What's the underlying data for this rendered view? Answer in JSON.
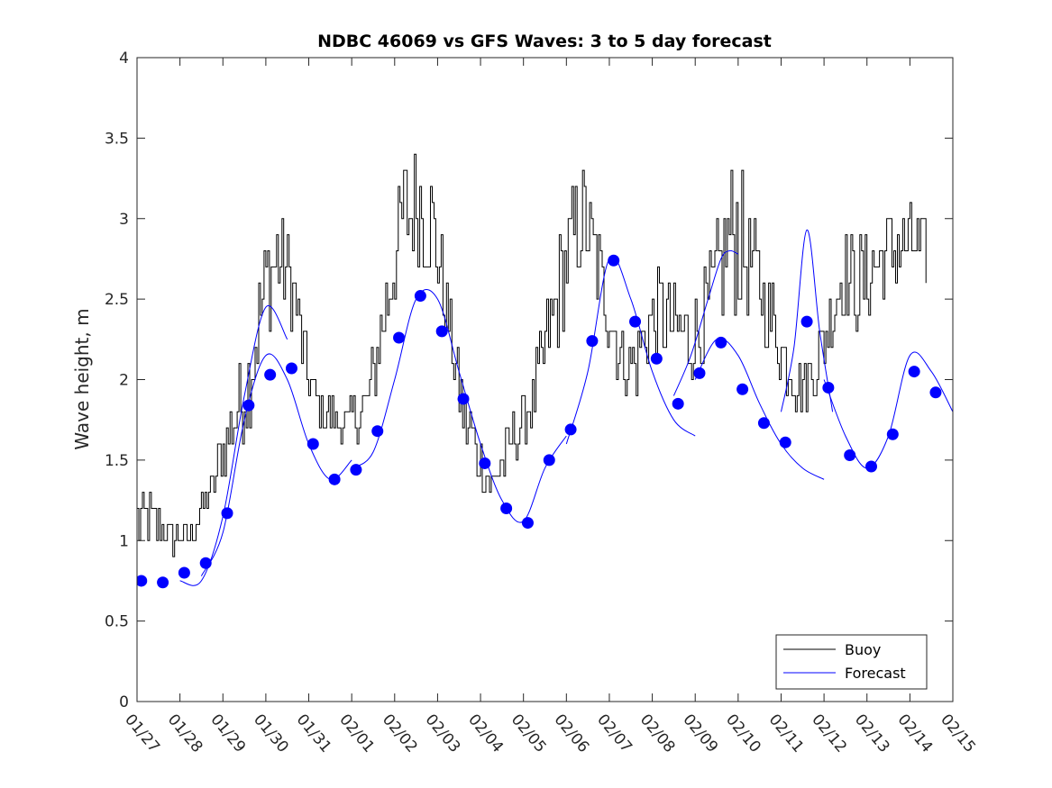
{
  "chart_data": {
    "type": "line",
    "title": "NDBC 46069 vs GFS Waves: 3 to 5 day forecast",
    "xlabel": "",
    "ylabel": "Wave height, m",
    "xlim": [
      0,
      19
    ],
    "ylim": [
      0,
      4
    ],
    "yticks": [
      0,
      0.5,
      1,
      1.5,
      2,
      2.5,
      3,
      3.5,
      4
    ],
    "ytick_labels": [
      "0",
      "0.5",
      "1",
      "1.5",
      "2",
      "2.5",
      "3",
      "3.5",
      "4"
    ],
    "xtick_labels": [
      "01/27",
      "01/28",
      "01/29",
      "01/30",
      "01/31",
      "02/01",
      "02/02",
      "02/03",
      "02/04",
      "02/05",
      "02/06",
      "02/07",
      "02/08",
      "02/09",
      "02/10",
      "02/11",
      "02/12",
      "02/13",
      "02/14",
      "02/15"
    ],
    "legend": {
      "position": "bottom-right",
      "entries": [
        "Buoy",
        "Forecast"
      ]
    },
    "colors": {
      "buoy": "#000000",
      "forecast": "#0000ff"
    },
    "buoy_envelope": {
      "x": [
        0,
        0.3,
        0.7,
        1.2,
        1.7,
        2.1,
        2.6,
        2.9,
        3.1,
        3.3,
        3.6,
        3.9,
        4.2,
        4.6,
        5.0,
        5.4,
        5.8,
        6.2,
        6.6,
        6.9,
        7.1,
        7.3,
        7.6,
        7.9,
        8.2,
        8.6,
        8.9,
        9.2,
        9.6,
        10.0,
        10.4,
        10.8,
        11.2,
        11.4,
        11.6,
        11.9,
        12.2,
        12.6,
        12.9,
        13.2,
        13.6,
        13.9,
        14.2,
        14.6,
        15.0,
        15.3,
        15.6,
        15.8,
        15.9,
        16.1,
        16.4,
        16.8,
        17.2,
        17.5,
        17.9,
        18.2,
        18.4
      ],
      "base": [
        1.1,
        1.1,
        1.05,
        1.0,
        1.3,
        1.65,
        2.0,
        2.45,
        2.7,
        2.75,
        2.6,
        2.1,
        1.8,
        1.75,
        1.75,
        1.9,
        2.5,
        3.0,
        3.1,
        2.9,
        2.6,
        2.25,
        1.8,
        1.55,
        1.35,
        1.55,
        1.7,
        1.85,
        2.3,
        2.75,
        3.0,
        2.6,
        2.2,
        2.1,
        2.1,
        2.35,
        2.4,
        2.3,
        2.2,
        2.4,
        2.7,
        2.95,
        2.75,
        2.5,
        2.2,
        2.0,
        1.95,
        2.1,
        2.2,
        2.35,
        2.65,
        2.6,
        2.7,
        2.8,
        2.85,
        2.8,
        2.8
      ],
      "amp": [
        0.25,
        0.2,
        0.12,
        0.12,
        0.15,
        0.2,
        0.3,
        0.4,
        0.4,
        0.35,
        0.3,
        0.25,
        0.15,
        0.15,
        0.15,
        0.2,
        0.35,
        0.4,
        0.4,
        0.4,
        0.3,
        0.25,
        0.25,
        0.2,
        0.15,
        0.2,
        0.2,
        0.2,
        0.3,
        0.4,
        0.35,
        0.3,
        0.25,
        0.2,
        0.25,
        0.3,
        0.3,
        0.3,
        0.25,
        0.3,
        0.35,
        0.6,
        0.35,
        0.3,
        0.25,
        0.2,
        0.2,
        0.2,
        0.2,
        0.25,
        0.3,
        0.3,
        0.3,
        0.3,
        0.3,
        0.25,
        0.25
      ]
    },
    "forecast_points": {
      "x": [
        0.1,
        0.6,
        1.1,
        1.6,
        2.1,
        2.6,
        3.1,
        3.6,
        4.1,
        4.6,
        5.1,
        5.6,
        6.1,
        6.6,
        7.1,
        7.6,
        8.1,
        8.6,
        9.1,
        9.6,
        10.1,
        10.6,
        11.1,
        11.6,
        12.1,
        12.6,
        13.1,
        13.6,
        14.1,
        14.6,
        15.1,
        15.6,
        16.1,
        16.6,
        17.1,
        17.6,
        18.1,
        18.6
      ],
      "y": [
        0.75,
        0.74,
        0.8,
        0.86,
        1.17,
        1.84,
        2.03,
        2.07,
        1.6,
        1.38,
        1.44,
        1.68,
        2.26,
        2.52,
        2.3,
        1.88,
        1.48,
        1.2,
        1.11,
        1.5,
        1.69,
        2.24,
        2.74,
        2.36,
        2.13,
        1.85,
        2.04,
        2.23,
        1.94,
        1.73,
        1.61,
        2.36,
        1.95,
        1.53,
        1.46,
        1.66,
        2.05,
        1.92
      ]
    },
    "forecast_runs": [
      {
        "x": [
          1.0,
          1.5,
          2.0,
          2.5,
          3.0,
          3.5
        ],
        "y": [
          0.75,
          0.75,
          1.15,
          1.9,
          2.45,
          2.25
        ]
      },
      {
        "x": [
          1.5,
          2.0,
          2.5,
          3.0,
          3.5,
          4.0,
          4.5,
          5.0
        ],
        "y": [
          0.78,
          1.05,
          1.75,
          2.15,
          2.0,
          1.6,
          1.38,
          1.5
        ]
      },
      {
        "x": [
          5.0,
          5.5,
          6.0,
          6.5,
          7.0,
          7.5,
          8.0,
          8.5,
          9.0,
          9.5,
          10.0
        ],
        "y": [
          1.45,
          1.55,
          2.0,
          2.5,
          2.5,
          2.05,
          1.6,
          1.25,
          1.12,
          1.45,
          1.65
        ]
      },
      {
        "x": [
          10.0,
          10.5,
          11.0,
          11.5,
          12.0,
          12.5,
          13.0
        ],
        "y": [
          1.6,
          2.05,
          2.75,
          2.5,
          2.05,
          1.75,
          1.65
        ]
      },
      {
        "x": [
          12.5,
          12.9,
          13.3,
          13.6,
          13.8,
          14.0
        ],
        "y": [
          1.9,
          2.15,
          2.5,
          2.75,
          2.8,
          2.78
        ]
      },
      {
        "x": [
          13.0,
          13.5,
          14.0,
          14.5,
          15.0,
          15.5,
          16.0
        ],
        "y": [
          2.0,
          2.25,
          2.15,
          1.85,
          1.6,
          1.45,
          1.38
        ]
      },
      {
        "x": [
          15.0,
          15.3,
          15.6,
          15.9,
          16.2
        ],
        "y": [
          1.8,
          2.2,
          2.93,
          2.3,
          1.8
        ]
      },
      {
        "x": [
          16.0,
          16.5,
          17.0,
          17.5,
          18.0,
          18.5,
          19.0
        ],
        "y": [
          2.0,
          1.65,
          1.45,
          1.65,
          2.15,
          2.05,
          1.8
        ]
      }
    ]
  }
}
